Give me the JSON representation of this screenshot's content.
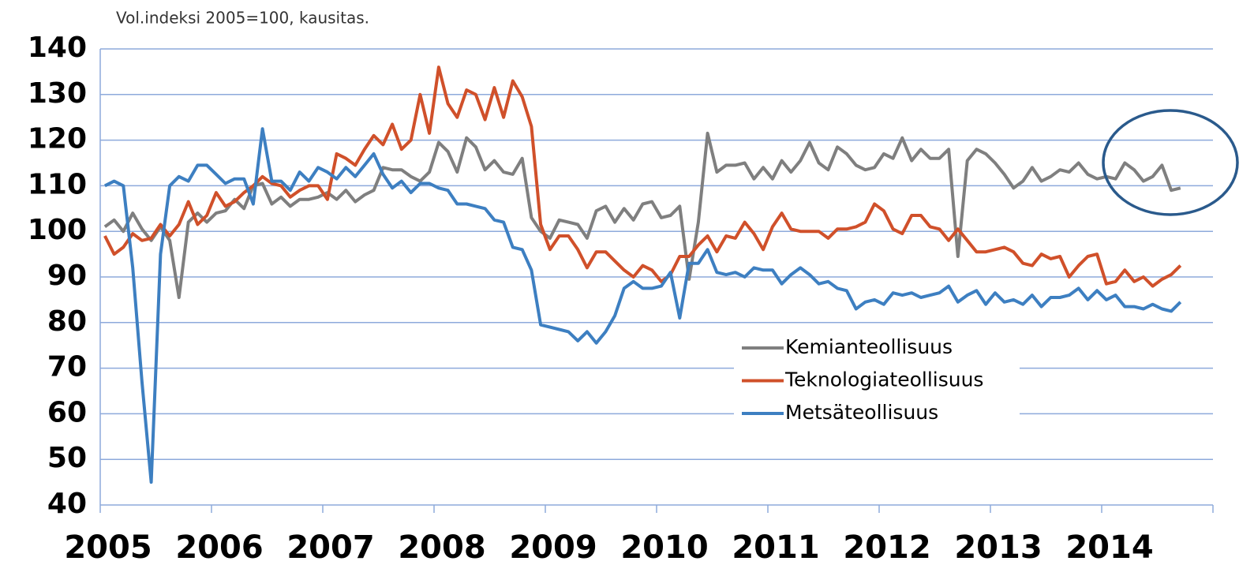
{
  "chart_data": {
    "type": "line",
    "subtitle": "Vol.indeksi 2005=100, kausitas.",
    "x": [
      2005.042,
      2005.125,
      2005.208,
      2005.292,
      2005.375,
      2005.458,
      2005.542,
      2005.625,
      2005.708,
      2005.792,
      2005.875,
      2005.958,
      2006.042,
      2006.125,
      2006.208,
      2006.292,
      2006.375,
      2006.458,
      2006.542,
      2006.625,
      2006.708,
      2006.792,
      2006.875,
      2006.958,
      2007.042,
      2007.125,
      2007.208,
      2007.292,
      2007.375,
      2007.458,
      2007.542,
      2007.625,
      2007.708,
      2007.792,
      2007.875,
      2007.958,
      2008.042,
      2008.125,
      2008.208,
      2008.292,
      2008.375,
      2008.458,
      2008.542,
      2008.625,
      2008.708,
      2008.792,
      2008.875,
      2008.958,
      2009.042,
      2009.125,
      2009.208,
      2009.292,
      2009.375,
      2009.458,
      2009.542,
      2009.625,
      2009.708,
      2009.792,
      2009.875,
      2009.958,
      2010.042,
      2010.125,
      2010.208,
      2010.292,
      2010.375,
      2010.458,
      2010.542,
      2010.625,
      2010.708,
      2010.792,
      2010.875,
      2010.958,
      2011.042,
      2011.125,
      2011.208,
      2011.292,
      2011.375,
      2011.458,
      2011.542,
      2011.625,
      2011.708,
      2011.792,
      2011.875,
      2011.958,
      2012.042,
      2012.125,
      2012.208,
      2012.292,
      2012.375,
      2012.458,
      2012.542,
      2012.625,
      2012.708,
      2012.792,
      2012.875,
      2012.958,
      2013.042,
      2013.125,
      2013.208,
      2013.292,
      2013.375,
      2013.458,
      2013.542,
      2013.625,
      2013.708,
      2013.792,
      2013.875,
      2013.958,
      2014.042,
      2014.125,
      2014.208,
      2014.292,
      2014.375,
      2014.458,
      2014.542,
      2014.625,
      2014.708
    ],
    "series": [
      {
        "name": "Kemianteollisuus",
        "color": "#7f7f7f",
        "values": [
          101,
          102.5,
          100,
          104,
          100.5,
          98,
          101,
          98,
          85.5,
          102,
          104,
          102,
          104,
          104.5,
          107,
          105,
          110,
          110.5,
          106,
          107.5,
          105.5,
          107,
          107,
          107.5,
          108.5,
          107,
          109,
          106.5,
          108,
          109,
          114,
          113.5,
          113.5,
          112,
          111,
          113,
          119.5,
          117.5,
          113,
          120.5,
          118.5,
          113.5,
          115.5,
          113,
          112.5,
          116,
          103,
          100,
          98.5,
          102.5,
          102,
          101.5,
          98.5,
          104.5,
          105.5,
          102,
          105,
          102.5,
          106,
          106.5,
          103,
          103.5,
          105.5,
          89.5,
          102,
          121.5,
          113,
          114.5,
          114.5,
          115,
          111.5,
          114,
          111.5,
          115.5,
          113,
          115.5,
          119.5,
          115,
          113.5,
          118.5,
          117,
          114.5,
          113.5,
          114,
          117,
          116,
          120.5,
          115.5,
          118,
          116,
          116,
          118,
          94.5,
          115.5,
          118,
          117,
          115,
          112.5,
          109.5,
          111,
          114,
          111,
          112,
          113.5,
          113,
          115,
          112.5,
          111.5,
          112,
          111.5,
          115,
          113.5,
          111,
          112,
          114.5,
          109,
          109.5
        ]
      },
      {
        "name": "Teknologiateollisuus",
        "color": "#d0502a",
        "values": [
          99,
          95,
          96.5,
          99.5,
          98,
          98.5,
          101.5,
          99,
          101.5,
          106.5,
          101.5,
          103.5,
          108.5,
          105.5,
          106.5,
          108.5,
          110,
          112,
          110.5,
          110,
          107.5,
          109,
          110,
          110,
          107,
          117,
          116,
          114.5,
          118,
          121,
          119,
          123.5,
          118,
          120,
          130,
          121.5,
          136,
          128,
          125,
          131,
          130,
          124.5,
          131.5,
          125,
          133,
          129.5,
          123,
          101.5,
          96,
          99,
          99,
          96,
          92,
          95.5,
          95.5,
          93.5,
          91.5,
          90,
          92.5,
          91.5,
          89,
          90.5,
          94.5,
          94.5,
          97,
          99,
          95.5,
          99,
          98.5,
          102,
          99.5,
          96,
          101,
          104,
          100.5,
          100,
          100,
          100,
          98.5,
          100.5,
          100.5,
          101,
          102,
          106,
          104.5,
          100.5,
          99.5,
          103.5,
          103.5,
          101,
          100.5,
          98,
          100.5,
          98,
          95.5,
          95.5,
          96,
          96.5,
          95.5,
          93,
          92.5,
          95,
          94,
          94.5,
          90,
          92.5,
          94.5,
          95,
          88.5,
          89,
          91.5,
          89,
          90,
          88,
          89.5,
          90.5,
          92.5
        ]
      },
      {
        "name": "Metsäteollisuus",
        "color": "#3d7fc1",
        "values": [
          110,
          111,
          110,
          92,
          67,
          45,
          95,
          110,
          112,
          111,
          114.5,
          114.5,
          112.5,
          110.5,
          111.5,
          111.5,
          106,
          122.5,
          111,
          111,
          109,
          113,
          111,
          114,
          113,
          111.5,
          114,
          112,
          114.5,
          117,
          112.5,
          109.5,
          111,
          108.5,
          110.5,
          110.5,
          109.5,
          109,
          106,
          106,
          105.5,
          105,
          102.5,
          102,
          96.5,
          96,
          91.5,
          79.5,
          79,
          78.5,
          78,
          76,
          78,
          75.5,
          78,
          81.5,
          87.5,
          89,
          87.5,
          87.5,
          88,
          91,
          81,
          93,
          93,
          96,
          91,
          90.5,
          91,
          90,
          92,
          91.5,
          91.5,
          88.5,
          90.5,
          92,
          90.5,
          88.5,
          89,
          87.5,
          87,
          83,
          84.5,
          85,
          84,
          86.5,
          86,
          86.5,
          85.5,
          86,
          86.5,
          88,
          84.5,
          86,
          87,
          84,
          86.5,
          84.5,
          85,
          84,
          86,
          83.5,
          85.5,
          85.5,
          86,
          87.5,
          85,
          87,
          85,
          86,
          83.5,
          83.5,
          83,
          84,
          83,
          82.5,
          84.5
        ]
      }
    ],
    "xlim": [
      2005,
      2015
    ],
    "xticks": [
      2005,
      2006,
      2007,
      2008,
      2009,
      2010,
      2011,
      2012,
      2013,
      2014
    ],
    "ylim": [
      40,
      140
    ],
    "yticks": [
      40,
      50,
      60,
      70,
      80,
      90,
      100,
      110,
      120,
      130,
      140
    ],
    "grid": true
  }
}
